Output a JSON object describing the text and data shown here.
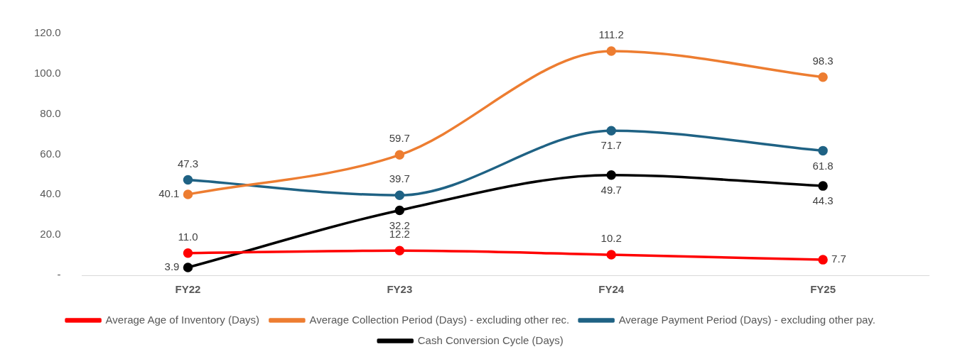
{
  "chart_data": {
    "type": "line",
    "categories": [
      "FY22",
      "FY23",
      "FY24",
      "FY25"
    ],
    "series": [
      {
        "name": "Average Age of Inventory (Days)",
        "color": "#ff0000",
        "values": [
          11.0,
          12.2,
          10.2,
          7.7
        ],
        "value_labels": [
          "11.0",
          "12.2",
          "10.2",
          "7.7"
        ]
      },
      {
        "name": "Average Collection Period (Days) - excluding other rec.",
        "color": "#ed7d31",
        "values": [
          40.1,
          59.7,
          111.2,
          98.3
        ],
        "value_labels": [
          "40.1",
          "59.7",
          "111.2",
          "98.3"
        ]
      },
      {
        "name": "Average Payment Period (Days) - excluding other pay.",
        "color": "#1f6284",
        "values": [
          47.3,
          39.7,
          71.7,
          61.8
        ],
        "value_labels": [
          "47.3",
          "39.7",
          "71.7",
          "61.8"
        ]
      },
      {
        "name": "Cash Conversion Cycle (Days)",
        "color": "#000000",
        "values": [
          3.9,
          32.2,
          49.7,
          44.3
        ],
        "value_labels": [
          "3.9",
          "32.2",
          "49.7",
          "44.3"
        ]
      }
    ],
    "ylim": [
      0,
      120
    ],
    "yticks": [
      {
        "value": 0,
        "label": "-"
      },
      {
        "value": 20,
        "label": "20.0"
      },
      {
        "value": 40,
        "label": "40.0"
      },
      {
        "value": 60,
        "label": "60.0"
      },
      {
        "value": 80,
        "label": "80.0"
      },
      {
        "value": 100,
        "label": "100.0"
      },
      {
        "value": 120,
        "label": "120.0"
      }
    ],
    "grid": false,
    "legend": "bottom",
    "marker": "circle",
    "line_style": "solid"
  }
}
